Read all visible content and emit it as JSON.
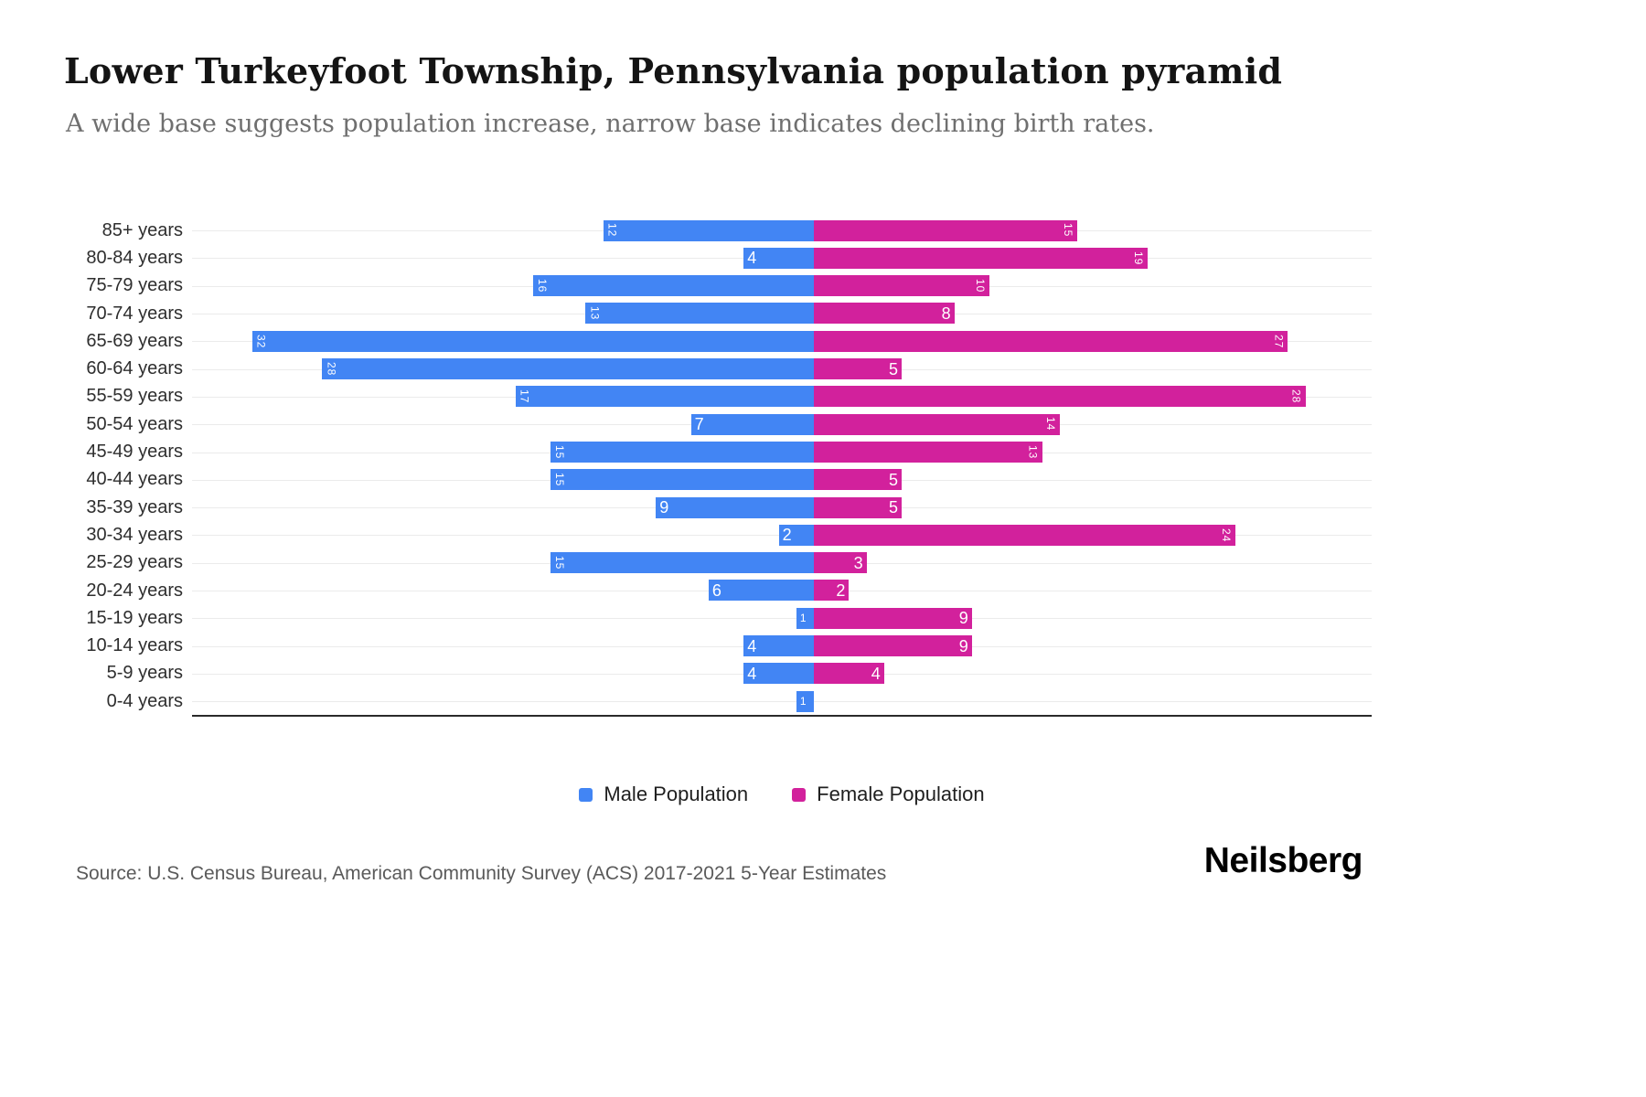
{
  "header": {
    "title": "Lower Turkeyfoot Township, Pennsylvania population pyramid",
    "subtitle": "A wide base suggests population increase, narrow base indicates declining birth rates."
  },
  "legend": {
    "male_label": "Male Population",
    "female_label": "Female Population"
  },
  "footer": {
    "source": "Source: U.S. Census Bureau, American Community Survey (ACS) 2017-2021 5-Year Estimates",
    "brand": "Neilsberg"
  },
  "colors": {
    "male": "#4285f4",
    "female": "#d2219c",
    "gridline": "#ebebeb",
    "axis_line": "#2a2a2a",
    "subtitle_text": "#6f6f6f",
    "source_text": "#5a5a5a"
  },
  "chart_data": {
    "type": "bar",
    "variant": "population-pyramid",
    "orientation": "horizontal",
    "title": "Lower Turkeyfoot Township, Pennsylvania population pyramid",
    "subtitle": "A wide base suggests population increase, narrow base indicates declining birth rates.",
    "categories": [
      "85+ years",
      "80-84 years",
      "75-79 years",
      "70-74 years",
      "65-69 years",
      "60-64 years",
      "55-59 years",
      "50-54 years",
      "45-49 years",
      "40-44 years",
      "35-39 years",
      "30-34 years",
      "25-29 years",
      "20-24 years",
      "15-19 years",
      "10-14 years",
      "5-9 years",
      "0-4 years"
    ],
    "series": [
      {
        "name": "Male Population",
        "color": "#4285f4",
        "values": [
          12,
          4,
          16,
          13,
          32,
          28,
          17,
          7,
          15,
          15,
          9,
          2,
          15,
          6,
          1,
          4,
          4,
          1
        ]
      },
      {
        "name": "Female Population",
        "color": "#d2219c",
        "values": [
          15,
          19,
          10,
          8,
          27,
          5,
          28,
          14,
          13,
          5,
          5,
          24,
          3,
          2,
          9,
          9,
          4,
          0
        ]
      }
    ],
    "value_axis_max": 32,
    "value_labels": "inside-bar-ends",
    "grid": "horizontal-faint",
    "legend_position": "bottom"
  }
}
